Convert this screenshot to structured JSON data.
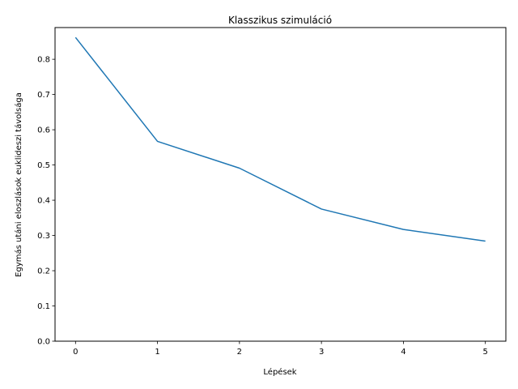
{
  "chart_data": {
    "type": "line",
    "title": "Klasszikus szimuláció",
    "xlabel": "Lépések",
    "ylabel": "Egymás utáni eloszlások euklideszi távolsága",
    "x": [
      0,
      1,
      2,
      3,
      4,
      5
    ],
    "series": [
      {
        "values": [
          0.862,
          0.567,
          0.491,
          0.375,
          0.317,
          0.284
        ],
        "color": "#1f77b4"
      }
    ],
    "xlim": [
      -0.25,
      5.25
    ],
    "ylim": [
      0,
      0.89
    ],
    "xticks": [
      "0",
      "1",
      "2",
      "3",
      "4",
      "5"
    ],
    "yticks": [
      "0.0",
      "0.1",
      "0.2",
      "0.3",
      "0.4",
      "0.5",
      "0.6",
      "0.7",
      "0.8"
    ],
    "grid": false,
    "legend": false
  }
}
